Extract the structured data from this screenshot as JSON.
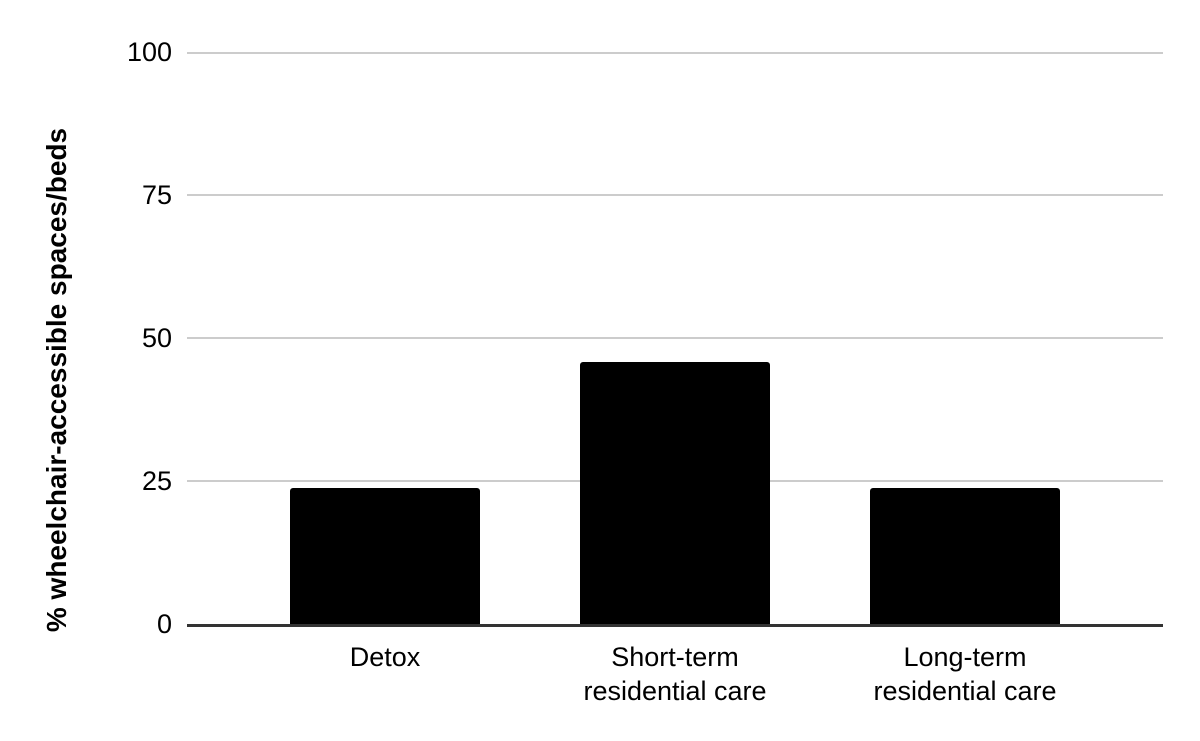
{
  "chart_data": {
    "type": "bar",
    "categories": [
      "Detox",
      "Short-term\nresidential care",
      "Long-term\nresidential care"
    ],
    "values": [
      23.7,
      45.8,
      23.7
    ],
    "title": "",
    "xlabel": "",
    "ylabel": "% wheelchair-accessible spaces/beds",
    "ylim": [
      0,
      100
    ],
    "yticks": [
      0,
      25,
      50,
      75,
      100
    ],
    "grid": "horizontal",
    "legend": "none",
    "bar_color": "#000000",
    "gridline_color": "#cccccc",
    "axis_line_color": "#333333",
    "text_color": "#000000",
    "background_color": "#ffffff"
  }
}
